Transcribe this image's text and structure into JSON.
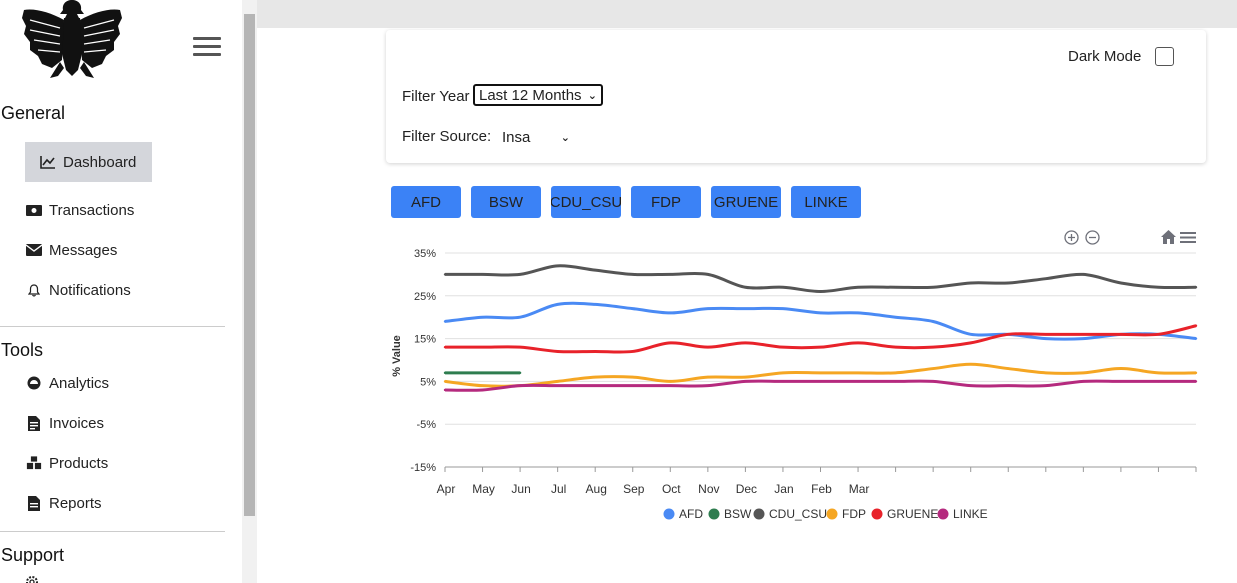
{
  "sidebar": {
    "sections": [
      {
        "title": "General",
        "items": [
          {
            "label": "Dashboard",
            "icon": "chart-line-icon",
            "active": true
          },
          {
            "label": "Transactions",
            "icon": "money-bill-icon"
          },
          {
            "label": "Messages",
            "icon": "envelope-icon"
          },
          {
            "label": "Notifications",
            "icon": "bell-icon"
          }
        ]
      },
      {
        "title": "Tools",
        "items": [
          {
            "label": "Analytics",
            "icon": "gauge-icon"
          },
          {
            "label": "Invoices",
            "icon": "invoice-icon"
          },
          {
            "label": "Products",
            "icon": "boxes-icon"
          },
          {
            "label": "Reports",
            "icon": "file-icon"
          }
        ]
      },
      {
        "title": "Support",
        "items": []
      }
    ]
  },
  "controls": {
    "dark_mode_label": "Dark Mode",
    "dark_mode_checked": false,
    "filter_year_label": "Filter Year",
    "filter_year_value": "Last 12 Months",
    "filter_source_label": "Filter Source:",
    "filter_source_value": "Insa"
  },
  "party_buttons": [
    "AFD",
    "BSW",
    "CDU_CSU",
    "FDP",
    "GRUENE",
    "LINKE"
  ],
  "colors": {
    "accent": "#3b82f6",
    "sidebar_active": "#d4d6db"
  },
  "chart_data": {
    "type": "line",
    "ylabel": "% Value",
    "xlabel": "",
    "y_ticks": [
      "35%",
      "25%",
      "15%",
      "5%",
      "-5%",
      "-15%"
    ],
    "ylim": [
      -15,
      35
    ],
    "x_labels": [
      "Apr",
      "May",
      "Jun",
      "Jul",
      "Aug",
      "Sep",
      "Oct",
      "Nov",
      "Dec",
      "Jan",
      "Feb",
      "Mar"
    ],
    "grid": true,
    "legend_position": "bottom",
    "series": [
      {
        "name": "AFD",
        "color": "#4a8af4",
        "values": [
          19,
          20,
          20,
          23,
          23,
          22,
          21,
          22,
          22,
          22,
          21,
          21,
          20,
          19,
          16,
          16,
          15,
          15,
          16,
          16,
          15
        ]
      },
      {
        "name": "BSW",
        "color": "#2e7d4f",
        "values": [
          7,
          7,
          7
        ]
      },
      {
        "name": "CDU_CSU",
        "color": "#555555",
        "values": [
          30,
          30,
          30,
          32,
          31,
          30,
          30,
          30,
          27,
          27,
          26,
          27,
          27,
          27,
          28,
          28,
          29,
          30,
          28,
          27,
          27
        ]
      },
      {
        "name": "FDP",
        "color": "#f5a623",
        "values": [
          5,
          4,
          4,
          5,
          6,
          6,
          5,
          6,
          6,
          7,
          7,
          7,
          7,
          8,
          9,
          8,
          7,
          7,
          8,
          7,
          7
        ]
      },
      {
        "name": "GRUENE",
        "color": "#e8222a",
        "values": [
          13,
          13,
          13,
          12,
          12,
          12,
          14,
          13,
          14,
          13,
          13,
          14,
          13,
          13,
          14,
          16,
          16,
          16,
          16,
          16,
          18
        ]
      },
      {
        "name": "LINKE",
        "color": "#b52a7e",
        "values": [
          3,
          3,
          4,
          4,
          4,
          4,
          4,
          4,
          5,
          5,
          5,
          5,
          5,
          5,
          4,
          4,
          4,
          5,
          5,
          5,
          5
        ]
      }
    ]
  }
}
